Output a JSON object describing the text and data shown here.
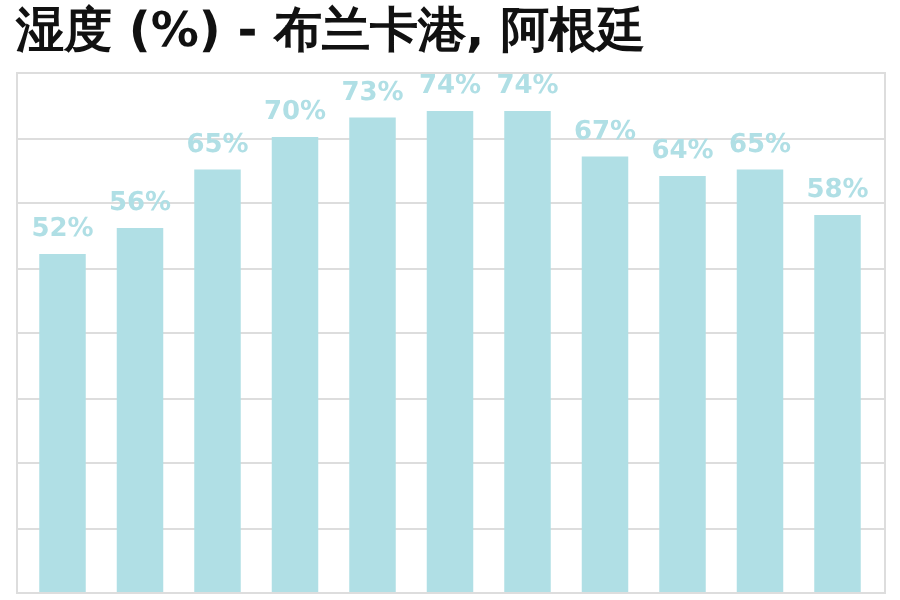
{
  "chart_data": {
    "type": "bar",
    "title": "湿度 (%) - 布兰卡港, 阿根廷",
    "categories": [
      null,
      null,
      null,
      null,
      null,
      null,
      null,
      null,
      null,
      null,
      null
    ],
    "values": [
      52,
      56,
      65,
      70,
      73,
      74,
      74,
      67,
      64,
      65,
      58
    ],
    "value_labels": [
      "52%",
      "56%",
      "65%",
      "70%",
      "73%",
      "74%",
      "74%",
      "67%",
      "64%",
      "65%",
      "58%"
    ],
    "color": "#b0dfe5",
    "grid": "y",
    "tick_labels": false
  }
}
